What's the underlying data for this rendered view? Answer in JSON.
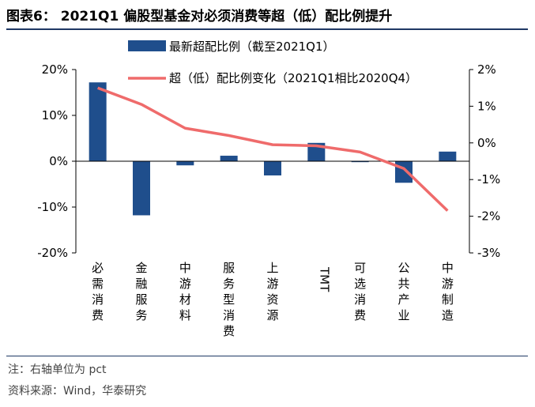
{
  "title": "图表6：  2021Q1 偏股型基金对必须消费等超（低）配比例提升",
  "note": "注：右轴单位为 pct",
  "source": "资料来源：Wind，华泰研究",
  "colors": {
    "bar": "#1f4e8c",
    "line": "#ef6b6b",
    "rule": "#1f3864"
  },
  "chart_data": {
    "type": "bar",
    "categories": [
      "必需消费",
      "金融服务",
      "中游材料",
      "服务型消费",
      "上游资源",
      "TMT",
      "可选消费",
      "公共产业",
      "中游制造"
    ],
    "category_display": [
      "必\n需\n消\n费",
      "金\n融\n服\n务",
      "中\n游\n材\n料",
      "服\n务\n型\n消\n费",
      "上\n游\n资\n源",
      "TMT",
      "可\n选\n消\n费",
      "公\n共\n产\n业",
      "中\n游\n制\n造"
    ],
    "series": [
      {
        "name": "最新超配比例（截至2021Q1）",
        "type": "bar",
        "axis": "left",
        "values": [
          17.2,
          -11.8,
          -0.9,
          1.2,
          -3.1,
          4.0,
          -0.2,
          -4.7,
          2.1
        ]
      },
      {
        "name": "超（低）配比例变化（2021Q1相比2020Q4）",
        "type": "line",
        "axis": "right",
        "values": [
          1.5,
          1.05,
          0.4,
          0.2,
          -0.05,
          -0.08,
          -0.25,
          -0.7,
          -1.85
        ]
      }
    ],
    "ylim_left": [
      -20,
      20
    ],
    "yticks_left": [
      "20%",
      "10%",
      "0%",
      "-10%",
      "-20%"
    ],
    "ylim_right": [
      -3,
      2
    ],
    "yticks_right": [
      "2%",
      "1%",
      "0%",
      "-1%",
      "-2%",
      "-3%"
    ],
    "legend": "top",
    "grid": false
  }
}
